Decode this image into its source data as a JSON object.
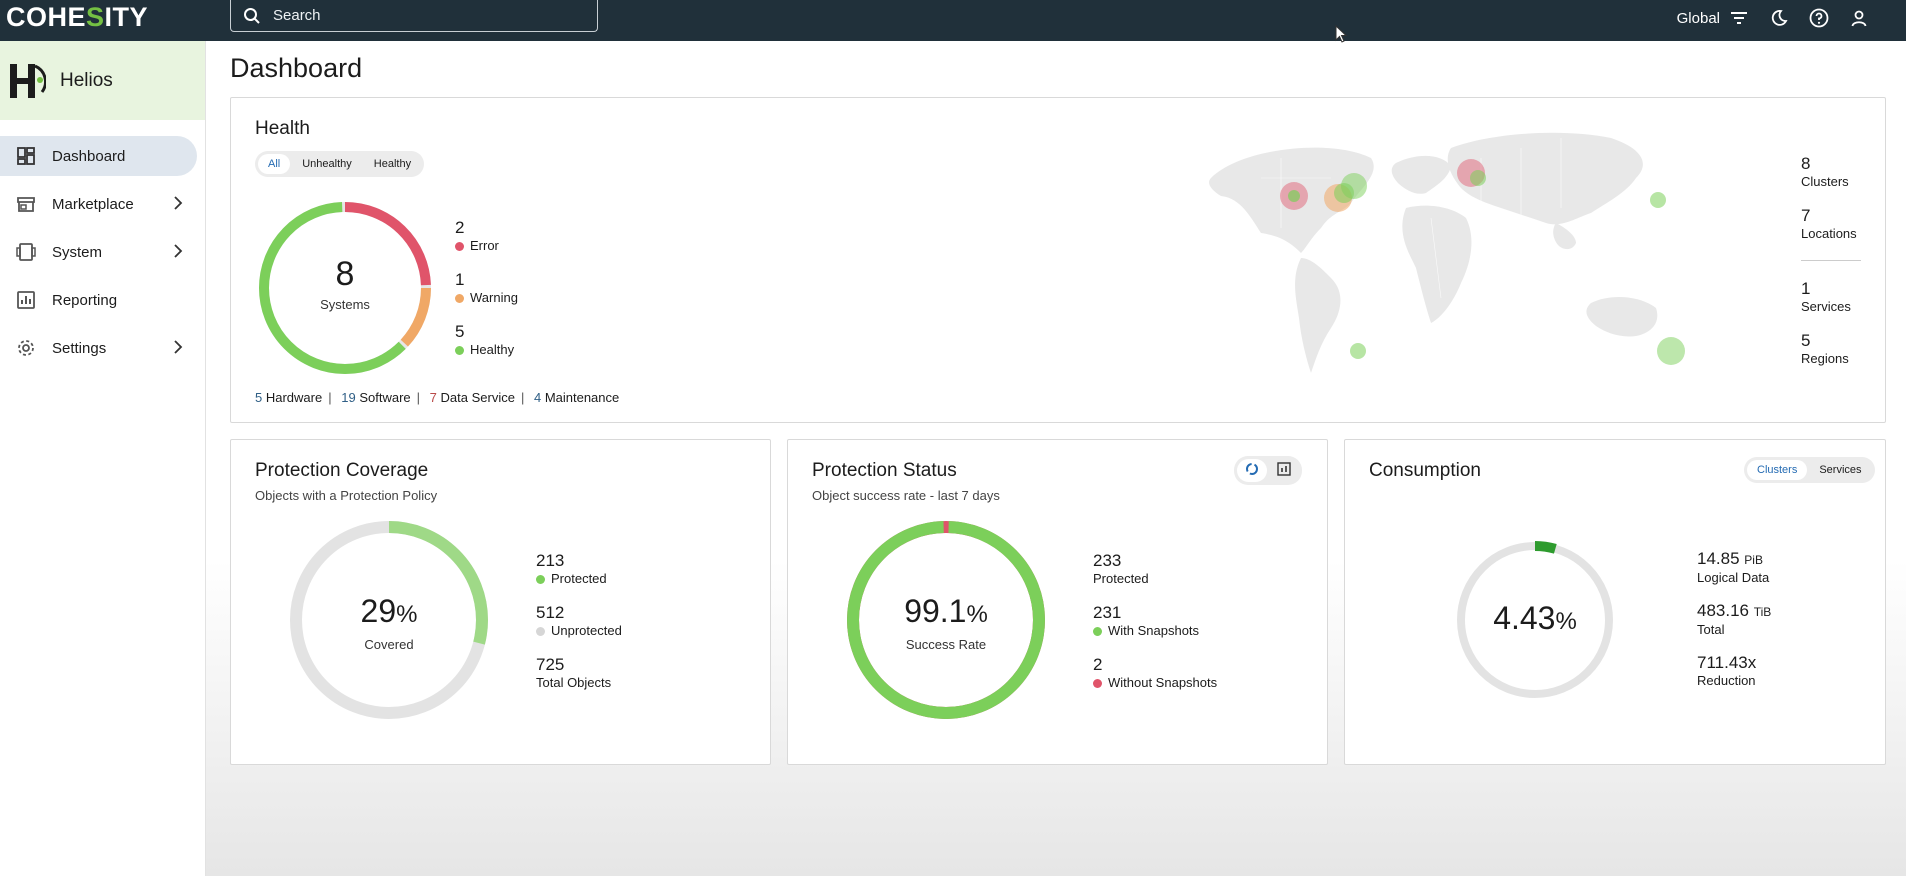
{
  "topbar": {
    "logo_pre": "COHE",
    "logo_mid": "S",
    "logo_post": "ITY",
    "search_placeholder": "Search",
    "scope_label": "Global"
  },
  "sidebar": {
    "brand": "Helios",
    "items": [
      {
        "label": "Dashboard",
        "icon": "dashboard-icon",
        "active": true,
        "has_children": false
      },
      {
        "label": "Marketplace",
        "icon": "store-icon",
        "active": false,
        "has_children": true
      },
      {
        "label": "System",
        "icon": "system-icon",
        "active": false,
        "has_children": true
      },
      {
        "label": "Reporting",
        "icon": "chart-icon",
        "active": false,
        "has_children": false
      },
      {
        "label": "Settings",
        "icon": "gear-icon",
        "active": false,
        "has_children": true
      }
    ]
  },
  "page": {
    "title": "Dashboard"
  },
  "health": {
    "title": "Health",
    "filters": [
      "All",
      "Unhealthy",
      "Healthy"
    ],
    "active_filter": "All",
    "total": "8",
    "total_label": "Systems",
    "legend": [
      {
        "value": "2",
        "label": "Error",
        "color": "#e0546a"
      },
      {
        "value": "1",
        "label": "Warning",
        "color": "#f0a866"
      },
      {
        "value": "5",
        "label": "Healthy",
        "color": "#7ccf5a"
      }
    ],
    "summary": [
      {
        "count": "5",
        "label": "Hardware"
      },
      {
        "count": "19",
        "label": "Software"
      },
      {
        "count": "7",
        "label": "Data Service"
      },
      {
        "count": "4",
        "label": "Maintenance"
      }
    ],
    "stats": [
      {
        "value": "8",
        "label": "Clusters"
      },
      {
        "value": "7",
        "label": "Locations"
      },
      {
        "value": "1",
        "label": "Services"
      },
      {
        "value": "5",
        "label": "Regions"
      }
    ]
  },
  "coverage": {
    "title": "Protection Coverage",
    "subtitle": "Objects with a Protection Policy",
    "percent": "29",
    "percent_sign": "%",
    "center_label": "Covered",
    "fraction": 0.29,
    "legend": [
      {
        "value": "213",
        "label": "Protected",
        "color": "#7ccf5a"
      },
      {
        "value": "512",
        "label": "Unprotected",
        "color": "#d6d6d6"
      },
      {
        "value": "725",
        "label": "Total Objects",
        "color": ""
      }
    ]
  },
  "status": {
    "title": "Protection Status",
    "subtitle": "Object success rate - last 7 days",
    "percent": "99.1",
    "percent_sign": "%",
    "center_label": "Success Rate",
    "fraction": 0.991,
    "legend": [
      {
        "value": "233",
        "label": "Protected",
        "color": ""
      },
      {
        "value": "231",
        "label": "With Snapshots",
        "color": "#7ccf5a"
      },
      {
        "value": "2",
        "label": "Without Snapshots",
        "color": "#e0546a"
      }
    ]
  },
  "consumption": {
    "title": "Consumption",
    "toggle": [
      "Clusters",
      "Services"
    ],
    "active_toggle": "Clusters",
    "percent": "4.43",
    "percent_sign": "%",
    "fraction": 0.0443,
    "stats": [
      {
        "value": "14.85",
        "unit": "PiB",
        "label": "Logical Data"
      },
      {
        "value": "483.16",
        "unit": "TiB",
        "label": "Total"
      },
      {
        "value": "711.43x",
        "unit": "",
        "label": "Reduction"
      }
    ]
  }
}
